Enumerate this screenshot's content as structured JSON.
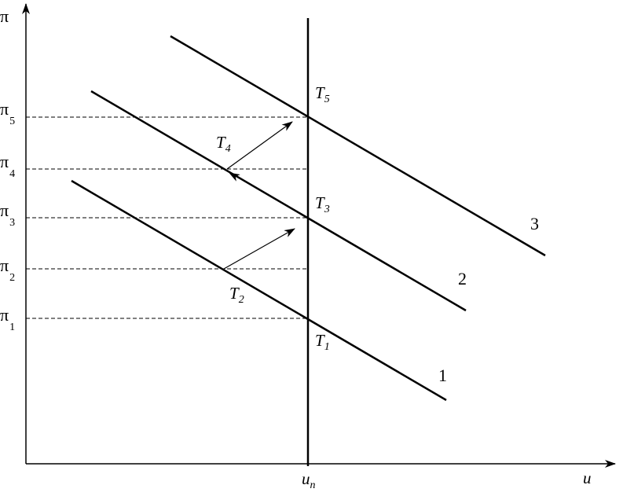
{
  "axes": {
    "y_label": "π",
    "x_label": "u",
    "x_marker": {
      "main": "u",
      "sub": "n"
    }
  },
  "pi_levels": [
    {
      "main": "π",
      "sub": "5"
    },
    {
      "main": "π",
      "sub": "4"
    },
    {
      "main": "π",
      "sub": "3"
    },
    {
      "main": "π",
      "sub": "2"
    },
    {
      "main": "π",
      "sub": "1"
    }
  ],
  "curves": [
    {
      "label": "1"
    },
    {
      "label": "2"
    },
    {
      "label": "3"
    }
  ],
  "points": [
    {
      "main": "T",
      "sub": "5"
    },
    {
      "main": "T",
      "sub": "4"
    },
    {
      "main": "T",
      "sub": "3"
    },
    {
      "main": "T",
      "sub": "2"
    },
    {
      "main": "T",
      "sub": "1"
    }
  ]
}
